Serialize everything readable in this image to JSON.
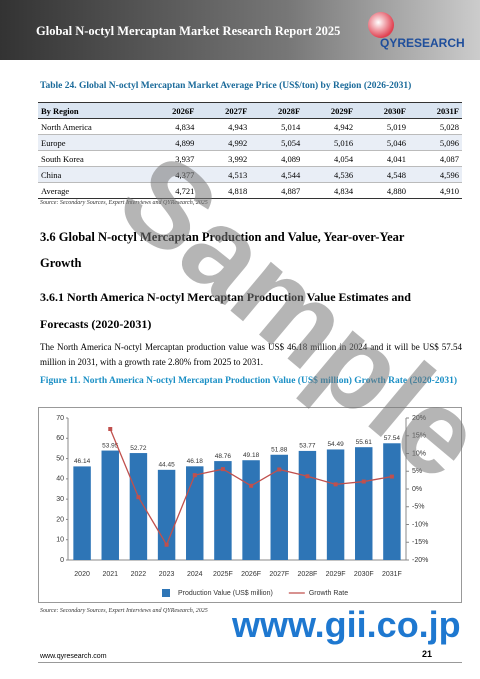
{
  "header": {
    "title": "Global N-octyl Mercaptan Market Research Report 2025",
    "logo": "QYRESEARCH"
  },
  "table": {
    "title": "Table 24.   Global N-octyl Mercaptan Market Average Price (US$/ton) by Region (2026-2031)",
    "columns": [
      "By Region",
      "2026F",
      "2027F",
      "2028F",
      "2029F",
      "2030F",
      "2031F"
    ],
    "rows": [
      [
        "North America",
        "4,834",
        "4,943",
        "5,014",
        "4,942",
        "5,019",
        "5,028"
      ],
      [
        "Europe",
        "4,899",
        "4,992",
        "5,054",
        "5,016",
        "5,046",
        "5,096"
      ],
      [
        "South Korea",
        "3,937",
        "3,992",
        "4,089",
        "4,054",
        "4,041",
        "4,087"
      ],
      [
        "China",
        "4,377",
        "4,513",
        "4,544",
        "4,536",
        "4,548",
        "4,596"
      ],
      [
        "Average",
        "4,721",
        "4,818",
        "4,887",
        "4,834",
        "4,880",
        "4,910"
      ]
    ],
    "source": "Source: Secondary Sources, Expert Interviews and QYResearch, 2025"
  },
  "section": {
    "heading": "3.6  Global N-octyl Mercaptan Production and Value, Year-over-Year Growth",
    "subheading": "3.6.1  North America N-octyl Mercaptan Production Value Estimates and Forecasts (2020-2031)",
    "paragraph": "The North America N-octyl Mercaptan production value was US$ 46.18 million in 2024 and it will be US$ 57.54 million in 2031, with a growth rate 2.80% from 2025 to 2031."
  },
  "figure": {
    "title": "Figure 11.   North America N-octyl Mercaptan Production Value (US$ million) Growth Rate (2020-2031)",
    "source": "Source: Secondary Sources, Expert Interviews and QYResearch, 2025"
  },
  "chart_data": {
    "type": "bar-line",
    "categories": [
      "2020",
      "2021",
      "2022",
      "2023",
      "2024",
      "2025F",
      "2026F",
      "2027F",
      "2028F",
      "2029F",
      "2030F",
      "2031F"
    ],
    "series": [
      {
        "name": "Production Value (US$ million)",
        "color": "#2e75b6",
        "values": [
          46.14,
          53.95,
          52.72,
          44.45,
          46.18,
          48.76,
          49.18,
          51.88,
          53.77,
          54.49,
          55.61,
          57.54
        ]
      },
      {
        "name": "Growth Rate",
        "color": "#c0504d",
        "axis": "y2",
        "values": [
          null,
          16.9,
          -2.3,
          -15.7,
          3.9,
          5.6,
          0.9,
          5.5,
          3.6,
          1.3,
          2.1,
          3.5
        ]
      }
    ],
    "ylim": [
      0,
      70
    ],
    "yticks": [
      0,
      10,
      20,
      30,
      40,
      50,
      60,
      70
    ],
    "y2lim": [
      -20,
      20
    ],
    "y2ticks": [
      {
        "value": -20,
        "label": "-20%"
      },
      {
        "value": -15,
        "label": "-15%"
      },
      {
        "value": -10,
        "label": "-10%"
      },
      {
        "value": -5,
        "label": "-5%"
      },
      {
        "value": 0,
        "label": "0%"
      },
      {
        "value": 5,
        "label": "5%"
      },
      {
        "value": 10,
        "label": "10%"
      },
      {
        "value": 15,
        "label": "15%"
      },
      {
        "value": 20,
        "label": "20%"
      }
    ]
  },
  "footer": {
    "website": "www.qyresearch.com",
    "page": "21"
  },
  "watermark": {
    "text": "Sample",
    "site": "www.gii.co.jp"
  }
}
